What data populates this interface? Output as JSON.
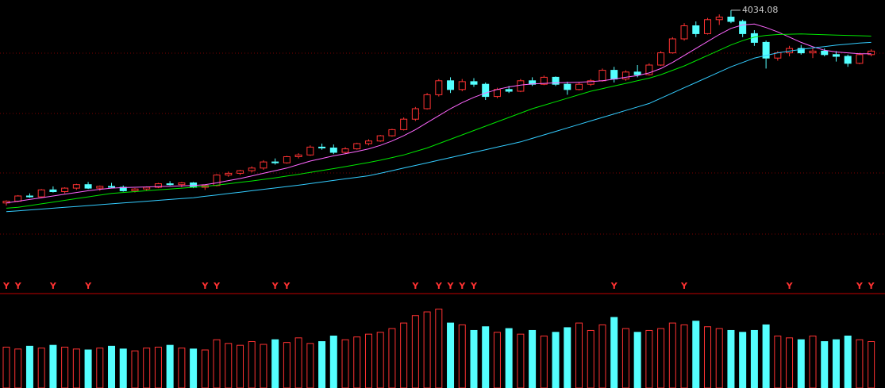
{
  "chart_data": {
    "type": "candlestick",
    "ylim": [
      2820,
      4070
    ],
    "up_color": "#ff3232",
    "down_color": "#54ffff",
    "candles": [
      [
        2930,
        2945,
        2915,
        2940
      ],
      [
        2940,
        2975,
        2935,
        2970
      ],
      [
        2970,
        2985,
        2960,
        2965
      ],
      [
        2965,
        3010,
        2960,
        3005
      ],
      [
        3005,
        3025,
        2990,
        2995
      ],
      [
        2995,
        3020,
        2985,
        3015
      ],
      [
        3015,
        3040,
        3005,
        3035
      ],
      [
        3035,
        3050,
        3010,
        3015
      ],
      [
        3015,
        3030,
        3000,
        3025
      ],
      [
        3025,
        3045,
        3015,
        3020
      ],
      [
        3020,
        3030,
        2995,
        3000
      ],
      [
        3000,
        3015,
        2990,
        3010
      ],
      [
        3010,
        3025,
        3000,
        3020
      ],
      [
        3020,
        3045,
        3015,
        3040
      ],
      [
        3040,
        3055,
        3030,
        3035
      ],
      [
        3035,
        3050,
        3020,
        3045
      ],
      [
        3045,
        3050,
        3015,
        3020
      ],
      [
        3020,
        3035,
        3005,
        3030
      ],
      [
        3030,
        3095,
        3025,
        3090
      ],
      [
        3090,
        3110,
        3080,
        3100
      ],
      [
        3100,
        3120,
        3090,
        3115
      ],
      [
        3115,
        3140,
        3105,
        3130
      ],
      [
        3130,
        3175,
        3120,
        3165
      ],
      [
        3165,
        3185,
        3150,
        3160
      ],
      [
        3160,
        3200,
        3155,
        3195
      ],
      [
        3195,
        3215,
        3185,
        3205
      ],
      [
        3205,
        3260,
        3200,
        3250
      ],
      [
        3250,
        3270,
        3235,
        3245
      ],
      [
        3245,
        3265,
        3210,
        3220
      ],
      [
        3220,
        3250,
        3210,
        3240
      ],
      [
        3240,
        3275,
        3235,
        3270
      ],
      [
        3270,
        3295,
        3260,
        3285
      ],
      [
        3285,
        3320,
        3280,
        3315
      ],
      [
        3315,
        3355,
        3310,
        3350
      ],
      [
        3350,
        3420,
        3345,
        3410
      ],
      [
        3410,
        3480,
        3400,
        3470
      ],
      [
        3470,
        3560,
        3465,
        3550
      ],
      [
        3550,
        3640,
        3540,
        3630
      ],
      [
        3630,
        3650,
        3560,
        3580
      ],
      [
        3580,
        3640,
        3570,
        3625
      ],
      [
        3625,
        3645,
        3595,
        3610
      ],
      [
        3610,
        3620,
        3520,
        3540
      ],
      [
        3540,
        3590,
        3530,
        3580
      ],
      [
        3580,
        3600,
        3560,
        3570
      ],
      [
        3570,
        3640,
        3565,
        3630
      ],
      [
        3630,
        3650,
        3600,
        3610
      ],
      [
        3610,
        3660,
        3605,
        3650
      ],
      [
        3650,
        3655,
        3600,
        3610
      ],
      [
        3610,
        3625,
        3550,
        3580
      ],
      [
        3580,
        3620,
        3575,
        3610
      ],
      [
        3610,
        3640,
        3600,
        3630
      ],
      [
        3630,
        3700,
        3625,
        3690
      ],
      [
        3690,
        3710,
        3620,
        3640
      ],
      [
        3640,
        3690,
        3630,
        3680
      ],
      [
        3680,
        3720,
        3650,
        3665
      ],
      [
        3665,
        3730,
        3660,
        3720
      ],
      [
        3720,
        3800,
        3715,
        3790
      ],
      [
        3790,
        3880,
        3785,
        3870
      ],
      [
        3870,
        3960,
        3860,
        3945
      ],
      [
        3945,
        3970,
        3880,
        3900
      ],
      [
        3900,
        3990,
        3895,
        3980
      ],
      [
        3980,
        4010,
        3950,
        3995
      ],
      [
        3995,
        4034.08,
        3960,
        3970
      ],
      [
        3970,
        3980,
        3880,
        3900
      ],
      [
        3900,
        3920,
        3830,
        3850
      ],
      [
        3850,
        3860,
        3700,
        3760
      ],
      [
        3760,
        3800,
        3745,
        3790
      ],
      [
        3790,
        3830,
        3770,
        3815
      ],
      [
        3815,
        3835,
        3780,
        3790
      ],
      [
        3790,
        3820,
        3760,
        3800
      ],
      [
        3800,
        3815,
        3770,
        3780
      ],
      [
        3780,
        3800,
        3740,
        3770
      ],
      [
        3770,
        3780,
        3710,
        3730
      ],
      [
        3730,
        3790,
        3725,
        3780
      ],
      [
        3780,
        3810,
        3770,
        3800
      ]
    ],
    "series": [
      {
        "color": "#ff66ff",
        "values": [
          2930,
          2940,
          2950,
          2960,
          2970,
          2980,
          2990,
          3000,
          3008,
          3015,
          3018,
          3020,
          3022,
          3024,
          3026,
          3028,
          3030,
          3035,
          3045,
          3058,
          3070,
          3085,
          3100,
          3115,
          3130,
          3150,
          3170,
          3185,
          3200,
          3212,
          3225,
          3240,
          3260,
          3285,
          3315,
          3350,
          3390,
          3430,
          3470,
          3505,
          3535,
          3560,
          3580,
          3595,
          3605,
          3612,
          3615,
          3618,
          3620,
          3622,
          3625,
          3630,
          3640,
          3650,
          3660,
          3675,
          3700,
          3735,
          3775,
          3815,
          3855,
          3895,
          3930,
          3950,
          3955,
          3935,
          3910,
          3880,
          3850,
          3825,
          3805,
          3795,
          3790,
          3785,
          3785
        ]
      },
      {
        "color": "#00e600",
        "values": [
          2900,
          2905,
          2915,
          2925,
          2935,
          2945,
          2955,
          2965,
          2975,
          2985,
          2990,
          2995,
          3000,
          3005,
          3010,
          3015,
          3020,
          3025,
          3032,
          3040,
          3048,
          3056,
          3065,
          3074,
          3084,
          3094,
          3105,
          3116,
          3127,
          3138,
          3150,
          3162,
          3175,
          3190,
          3205,
          3225,
          3245,
          3270,
          3295,
          3320,
          3345,
          3370,
          3395,
          3420,
          3445,
          3470,
          3490,
          3510,
          3530,
          3550,
          3570,
          3585,
          3600,
          3615,
          3630,
          3645,
          3665,
          3690,
          3715,
          3745,
          3775,
          3805,
          3835,
          3860,
          3880,
          3890,
          3895,
          3897,
          3898,
          3896,
          3894,
          3892,
          3890,
          3888,
          3886
        ]
      },
      {
        "color": "#33ccff",
        "values": [
          2880,
          2885,
          2890,
          2895,
          2900,
          2905,
          2910,
          2915,
          2920,
          2925,
          2930,
          2935,
          2940,
          2945,
          2950,
          2955,
          2960,
          2968,
          2976,
          2984,
          2992,
          3000,
          3008,
          3016,
          3024,
          3032,
          3041,
          3050,
          3059,
          3068,
          3077,
          3086,
          3100,
          3115,
          3130,
          3145,
          3160,
          3175,
          3190,
          3205,
          3220,
          3235,
          3250,
          3265,
          3280,
          3300,
          3320,
          3340,
          3360,
          3380,
          3400,
          3420,
          3440,
          3460,
          3480,
          3500,
          3530,
          3560,
          3590,
          3620,
          3650,
          3680,
          3710,
          3735,
          3760,
          3775,
          3790,
          3800,
          3810,
          3818,
          3826,
          3834,
          3840,
          3846,
          3850
        ]
      }
    ],
    "volume_ylim": [
      0,
      1000
    ],
    "volume": [
      440,
      420,
      450,
      430,
      460,
      440,
      420,
      410,
      430,
      450,
      420,
      400,
      430,
      440,
      460,
      430,
      420,
      410,
      520,
      480,
      460,
      500,
      470,
      520,
      490,
      540,
      480,
      500,
      560,
      520,
      550,
      580,
      600,
      640,
      700,
      780,
      820,
      850,
      700,
      680,
      620,
      660,
      600,
      640,
      580,
      620,
      560,
      600,
      650,
      700,
      620,
      680,
      760,
      640,
      600,
      620,
      640,
      700,
      680,
      720,
      660,
      640,
      620,
      600,
      620,
      680,
      560,
      540,
      520,
      560,
      500,
      520,
      560,
      520,
      500
    ],
    "signal_label": "Y",
    "signal_at": [
      0,
      1,
      4,
      7,
      17,
      18,
      23,
      24,
      35,
      37,
      38,
      39,
      40,
      52,
      58,
      67,
      73,
      74
    ]
  }
}
